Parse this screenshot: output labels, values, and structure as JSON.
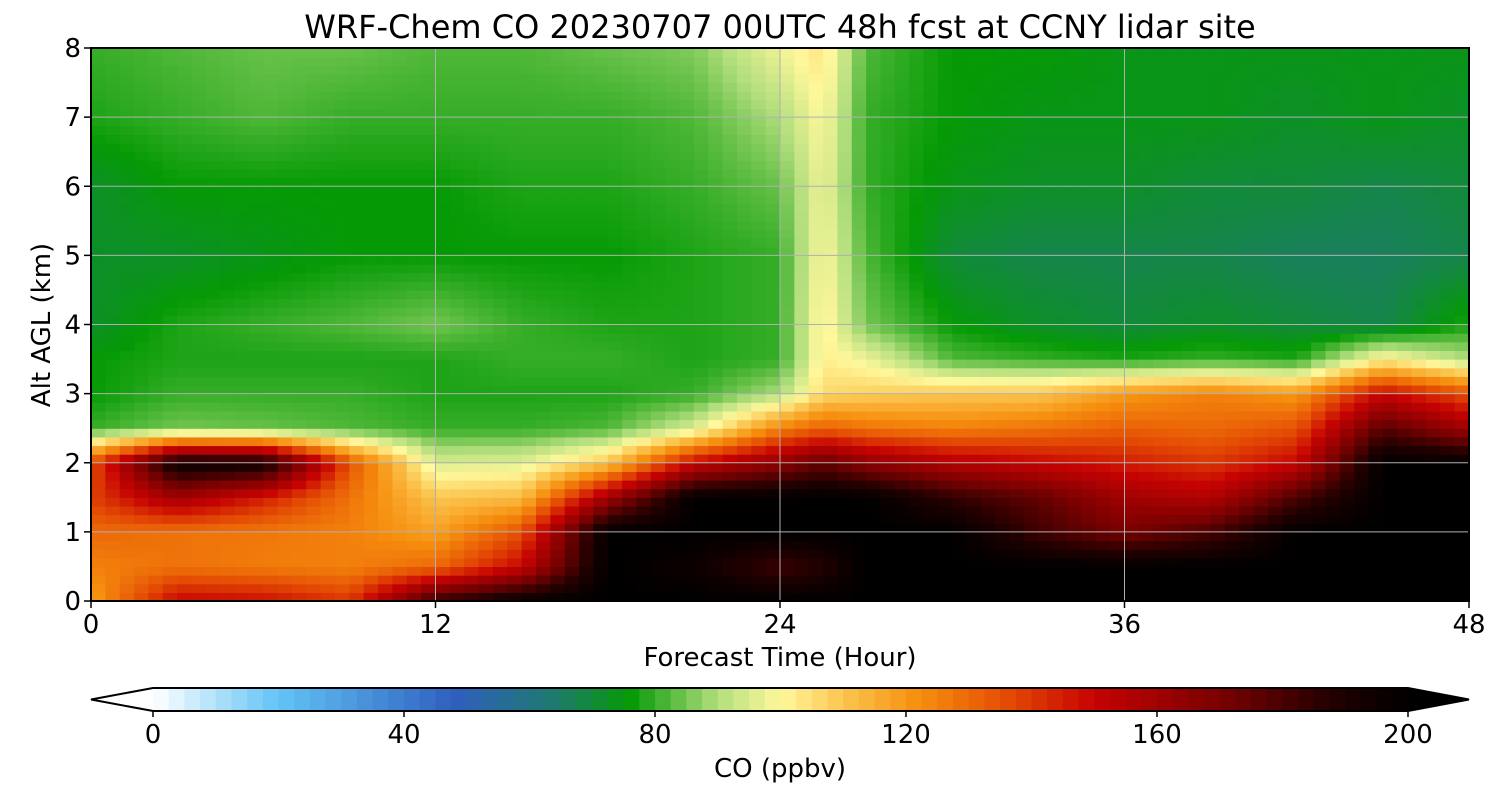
{
  "chart_data": {
    "type": "heatmap",
    "title": "WRF-Chem CO  20230707 00UTC 48h fcst at CCNY lidar site",
    "xlabel": "Forecast Time (Hour)",
    "ylabel": "Alt AGL (km)",
    "xlim": [
      0,
      48
    ],
    "ylim": [
      0,
      8
    ],
    "x_ticks": [
      0,
      12,
      24,
      36,
      48
    ],
    "y_ticks": [
      0,
      1,
      2,
      3,
      4,
      5,
      6,
      7,
      8
    ],
    "grid": true,
    "x": [
      0,
      3,
      6,
      9,
      12,
      15,
      18,
      21,
      24,
      25.5,
      27,
      30,
      33,
      36,
      39,
      42,
      45,
      48
    ],
    "y": [
      0,
      0.5,
      1,
      1.5,
      2,
      2.5,
      3,
      3.5,
      4,
      5,
      6,
      7,
      8
    ],
    "values": [
      [
        118,
        150,
        148,
        140,
        185,
        198,
        200,
        200,
        200,
        200,
        200,
        200,
        200,
        200,
        200,
        200,
        200,
        200
      ],
      [
        125,
        128,
        126,
        125,
        130,
        150,
        200,
        195,
        182,
        188,
        200,
        200,
        200,
        200,
        200,
        200,
        200,
        200
      ],
      [
        130,
        128,
        127,
        125,
        118,
        135,
        200,
        200,
        200,
        200,
        200,
        200,
        182,
        170,
        180,
        200,
        200,
        200
      ],
      [
        138,
        160,
        145,
        128,
        110,
        112,
        160,
        200,
        200,
        200,
        200,
        185,
        175,
        160,
        155,
        180,
        200,
        200
      ],
      [
        135,
        197,
        195,
        135,
        95,
        96,
        110,
        150,
        165,
        175,
        165,
        155,
        150,
        145,
        140,
        150,
        200,
        200
      ],
      [
        80,
        85,
        84,
        82,
        80,
        80,
        82,
        95,
        125,
        132,
        128,
        125,
        128,
        132,
        130,
        135,
        178,
        160
      ],
      [
        76,
        80,
        80,
        80,
        78,
        78,
        78,
        80,
        90,
        106,
        108,
        110,
        110,
        120,
        125,
        120,
        150,
        135
      ],
      [
        76,
        78,
        78,
        78,
        78,
        80,
        80,
        78,
        80,
        102,
        98,
        82,
        80,
        78,
        80,
        78,
        102,
        90
      ],
      [
        72,
        78,
        80,
        82,
        85,
        80,
        78,
        78,
        80,
        102,
        85,
        76,
        72,
        70,
        72,
        70,
        68,
        78
      ],
      [
        72,
        72,
        74,
        76,
        76,
        76,
        76,
        78,
        80,
        100,
        82,
        70,
        68,
        68,
        68,
        66,
        66,
        68
      ],
      [
        72,
        76,
        76,
        76,
        76,
        78,
        78,
        80,
        84,
        98,
        80,
        74,
        72,
        72,
        70,
        70,
        68,
        70
      ],
      [
        78,
        80,
        82,
        80,
        80,
        80,
        80,
        82,
        90,
        100,
        80,
        76,
        74,
        74,
        74,
        72,
        74,
        72
      ],
      [
        80,
        82,
        84,
        84,
        82,
        82,
        84,
        86,
        98,
        104,
        82,
        76,
        76,
        74,
        74,
        74,
        74,
        74
      ]
    ],
    "colorbar": {
      "label": "CO  (ppbv)",
      "min": 0,
      "max": 200,
      "ticks": [
        0,
        40,
        80,
        120,
        160,
        200
      ],
      "extend": "both",
      "stops": [
        {
          "v": 0,
          "c": "#ffffff"
        },
        {
          "v": 20,
          "c": "#62c3f5"
        },
        {
          "v": 48,
          "c": "#2f5fbf"
        },
        {
          "v": 64,
          "c": "#1e7a6e"
        },
        {
          "v": 76,
          "c": "#059a05"
        },
        {
          "v": 90,
          "c": "#b2de7d"
        },
        {
          "v": 100,
          "c": "#fff89c"
        },
        {
          "v": 110,
          "c": "#fbc54f"
        },
        {
          "v": 122,
          "c": "#f68f0e"
        },
        {
          "v": 136,
          "c": "#e44c04"
        },
        {
          "v": 150,
          "c": "#c60202"
        },
        {
          "v": 170,
          "c": "#7a0101"
        },
        {
          "v": 188,
          "c": "#220000"
        },
        {
          "v": 200,
          "c": "#000000"
        }
      ],
      "under_color": "#ffffff",
      "over_color": "#000000"
    }
  }
}
